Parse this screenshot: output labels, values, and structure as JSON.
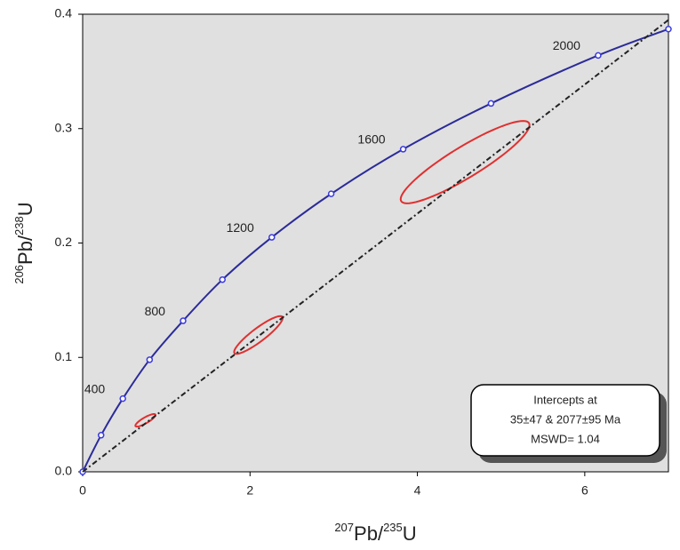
{
  "chart_data": {
    "type": "concordia",
    "xlabel": {
      "mass1": "207",
      "element1": "Pb/",
      "mass2": "235",
      "element2": "U"
    },
    "ylabel": {
      "mass1": "206",
      "element1": "Pb/",
      "mass2": "238",
      "element2": "U"
    },
    "xlim": [
      0,
      7
    ],
    "ylim": [
      0,
      0.4
    ],
    "xticks": [
      0,
      2,
      4,
      6
    ],
    "yticks": [
      {
        "value": 0,
        "label": "0.0"
      },
      0.1,
      0.2,
      0.3,
      0.4
    ],
    "background": "#e0e0e0",
    "series": [
      {
        "name": "concordia",
        "color": "#2b2b9a",
        "x": [
          0,
          0.22,
          0.48,
          0.8,
          1.2,
          1.67,
          2.26,
          2.97,
          3.83,
          4.88,
          6.16,
          7.0
        ],
        "values": [
          0,
          0.032,
          0.064,
          0.098,
          0.132,
          0.168,
          0.205,
          0.243,
          0.282,
          0.322,
          0.364,
          0.387
        ],
        "point_labels": [
          null,
          null,
          "400",
          null,
          "800",
          null,
          "1200",
          null,
          "1600",
          null,
          "2000",
          null
        ]
      },
      {
        "name": "discordia",
        "color": "#222222",
        "x": [
          0,
          7
        ],
        "values": [
          0,
          0.395
        ]
      }
    ],
    "ellipses": {
      "color": "#e03030",
      "x": [
        0.75,
        2.1,
        4.57
      ],
      "values": [
        0.045,
        0.1196,
        0.2707
      ],
      "sx": [
        0.12,
        0.29,
        0.77
      ],
      "sy": [
        0.0055,
        0.0165,
        0.036
      ],
      "rho": [
        0.85,
        0.9,
        0.9
      ]
    },
    "annotation": [
      "Intercepts  at",
      "35±47 & 2077±95 Ma",
      "MSWD= 1.04"
    ]
  }
}
